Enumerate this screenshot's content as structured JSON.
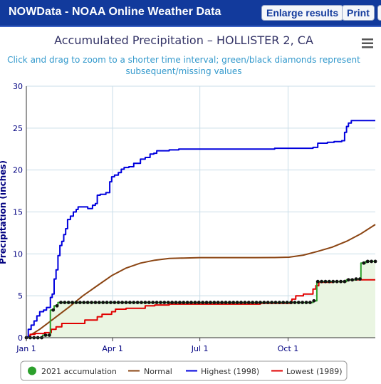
{
  "header": {
    "title": "NOWData - NOAA Online Weather Data",
    "enlarge_label": "Enlarge results",
    "print_label": "Print"
  },
  "chart_data": {
    "type": "line",
    "title": "Accumulated Precipitation – HOLLISTER 2, CA",
    "subtitle_line1": "Click and drag to zoom to a shorter time interval; green/black diamonds represent",
    "subtitle_line2": "subsequent/missing values",
    "ylabel": "Precipitation (inches)",
    "xlabel": "",
    "ylim": [
      0,
      30
    ],
    "xlim": [
      1,
      365
    ],
    "yticks": [
      0,
      5,
      10,
      15,
      20,
      25,
      30
    ],
    "xticks": [
      {
        "day": 1,
        "label": "Jan 1"
      },
      {
        "day": 91,
        "label": "Apr 1"
      },
      {
        "day": 182,
        "label": "Jul 1"
      },
      {
        "day": 274,
        "label": "Oct 1"
      }
    ],
    "grid": true,
    "legend_position": "bottom-center",
    "series": [
      {
        "name": "2021 accumulation",
        "color": "#2ca02c",
        "step": true,
        "fill": "#eaf5e2",
        "points": [
          [
            1,
            0
          ],
          [
            18,
            0.3
          ],
          [
            26,
            3.3
          ],
          [
            30,
            3.8
          ],
          [
            34,
            4.2
          ],
          [
            300,
            4.4
          ],
          [
            304,
            6.7
          ],
          [
            335,
            6.9
          ],
          [
            345,
            7.0
          ],
          [
            350,
            8.9
          ],
          [
            355,
            9.1
          ],
          [
            365,
            9.1
          ]
        ]
      },
      {
        "name": "Normal",
        "color": "#8b4513",
        "step": false,
        "points": [
          [
            1,
            0
          ],
          [
            15,
            1.0
          ],
          [
            30,
            2.3
          ],
          [
            45,
            3.6
          ],
          [
            60,
            5.0
          ],
          [
            75,
            6.2
          ],
          [
            90,
            7.4
          ],
          [
            105,
            8.3
          ],
          [
            120,
            8.9
          ],
          [
            135,
            9.25
          ],
          [
            150,
            9.45
          ],
          [
            165,
            9.5
          ],
          [
            182,
            9.55
          ],
          [
            200,
            9.55
          ],
          [
            220,
            9.55
          ],
          [
            240,
            9.55
          ],
          [
            260,
            9.56
          ],
          [
            275,
            9.6
          ],
          [
            290,
            9.85
          ],
          [
            305,
            10.3
          ],
          [
            320,
            10.8
          ],
          [
            335,
            11.5
          ],
          [
            350,
            12.4
          ],
          [
            365,
            13.5
          ]
        ]
      },
      {
        "name": "Highest (1998)",
        "color": "#0000dd",
        "step": true,
        "points": [
          [
            1,
            0
          ],
          [
            3,
            1.0
          ],
          [
            6,
            1.5
          ],
          [
            9,
            2.0
          ],
          [
            12,
            2.6
          ],
          [
            15,
            3.1
          ],
          [
            19,
            3.3
          ],
          [
            22,
            3.6
          ],
          [
            26,
            4.8
          ],
          [
            28,
            5.2
          ],
          [
            30,
            7.0
          ],
          [
            32,
            8.1
          ],
          [
            34,
            9.8
          ],
          [
            36,
            11.0
          ],
          [
            38,
            11.5
          ],
          [
            40,
            12.3
          ],
          [
            42,
            13.0
          ],
          [
            44,
            14.1
          ],
          [
            47,
            14.5
          ],
          [
            50,
            15.0
          ],
          [
            53,
            15.3
          ],
          [
            55,
            15.6
          ],
          [
            60,
            15.6
          ],
          [
            65,
            15.4
          ],
          [
            70,
            15.8
          ],
          [
            73,
            16.0
          ],
          [
            75,
            17.0
          ],
          [
            78,
            17.1
          ],
          [
            84,
            17.3
          ],
          [
            88,
            18.6
          ],
          [
            90,
            19.2
          ],
          [
            93,
            19.4
          ],
          [
            97,
            19.7
          ],
          [
            100,
            20.1
          ],
          [
            103,
            20.3
          ],
          [
            108,
            20.4
          ],
          [
            113,
            20.8
          ],
          [
            116,
            20.8
          ],
          [
            120,
            21.3
          ],
          [
            125,
            21.5
          ],
          [
            130,
            21.9
          ],
          [
            134,
            22.0
          ],
          [
            137,
            22.3
          ],
          [
            150,
            22.4
          ],
          [
            160,
            22.5
          ],
          [
            250,
            22.5
          ],
          [
            260,
            22.6
          ],
          [
            285,
            22.6
          ],
          [
            300,
            22.7
          ],
          [
            305,
            23.2
          ],
          [
            315,
            23.3
          ],
          [
            322,
            23.4
          ],
          [
            330,
            23.5
          ],
          [
            333,
            24.5
          ],
          [
            335,
            25.2
          ],
          [
            337,
            25.6
          ],
          [
            340,
            25.9
          ],
          [
            365,
            25.9
          ]
        ]
      },
      {
        "name": "Lowest (1989)",
        "color": "#e00000",
        "step": true,
        "points": [
          [
            1,
            0
          ],
          [
            5,
            0.4
          ],
          [
            10,
            0.5
          ],
          [
            20,
            0.6
          ],
          [
            27,
            1.0
          ],
          [
            32,
            1.3
          ],
          [
            38,
            1.7
          ],
          [
            62,
            2.1
          ],
          [
            75,
            2.5
          ],
          [
            80,
            2.8
          ],
          [
            90,
            3.1
          ],
          [
            94,
            3.4
          ],
          [
            105,
            3.5
          ],
          [
            125,
            3.8
          ],
          [
            135,
            3.9
          ],
          [
            150,
            4.0
          ],
          [
            245,
            4.1
          ],
          [
            278,
            4.6
          ],
          [
            282,
            5.0
          ],
          [
            290,
            5.2
          ],
          [
            300,
            5.8
          ],
          [
            303,
            6.2
          ],
          [
            306,
            6.6
          ],
          [
            320,
            6.7
          ],
          [
            335,
            6.9
          ],
          [
            365,
            6.9
          ]
        ]
      }
    ]
  }
}
